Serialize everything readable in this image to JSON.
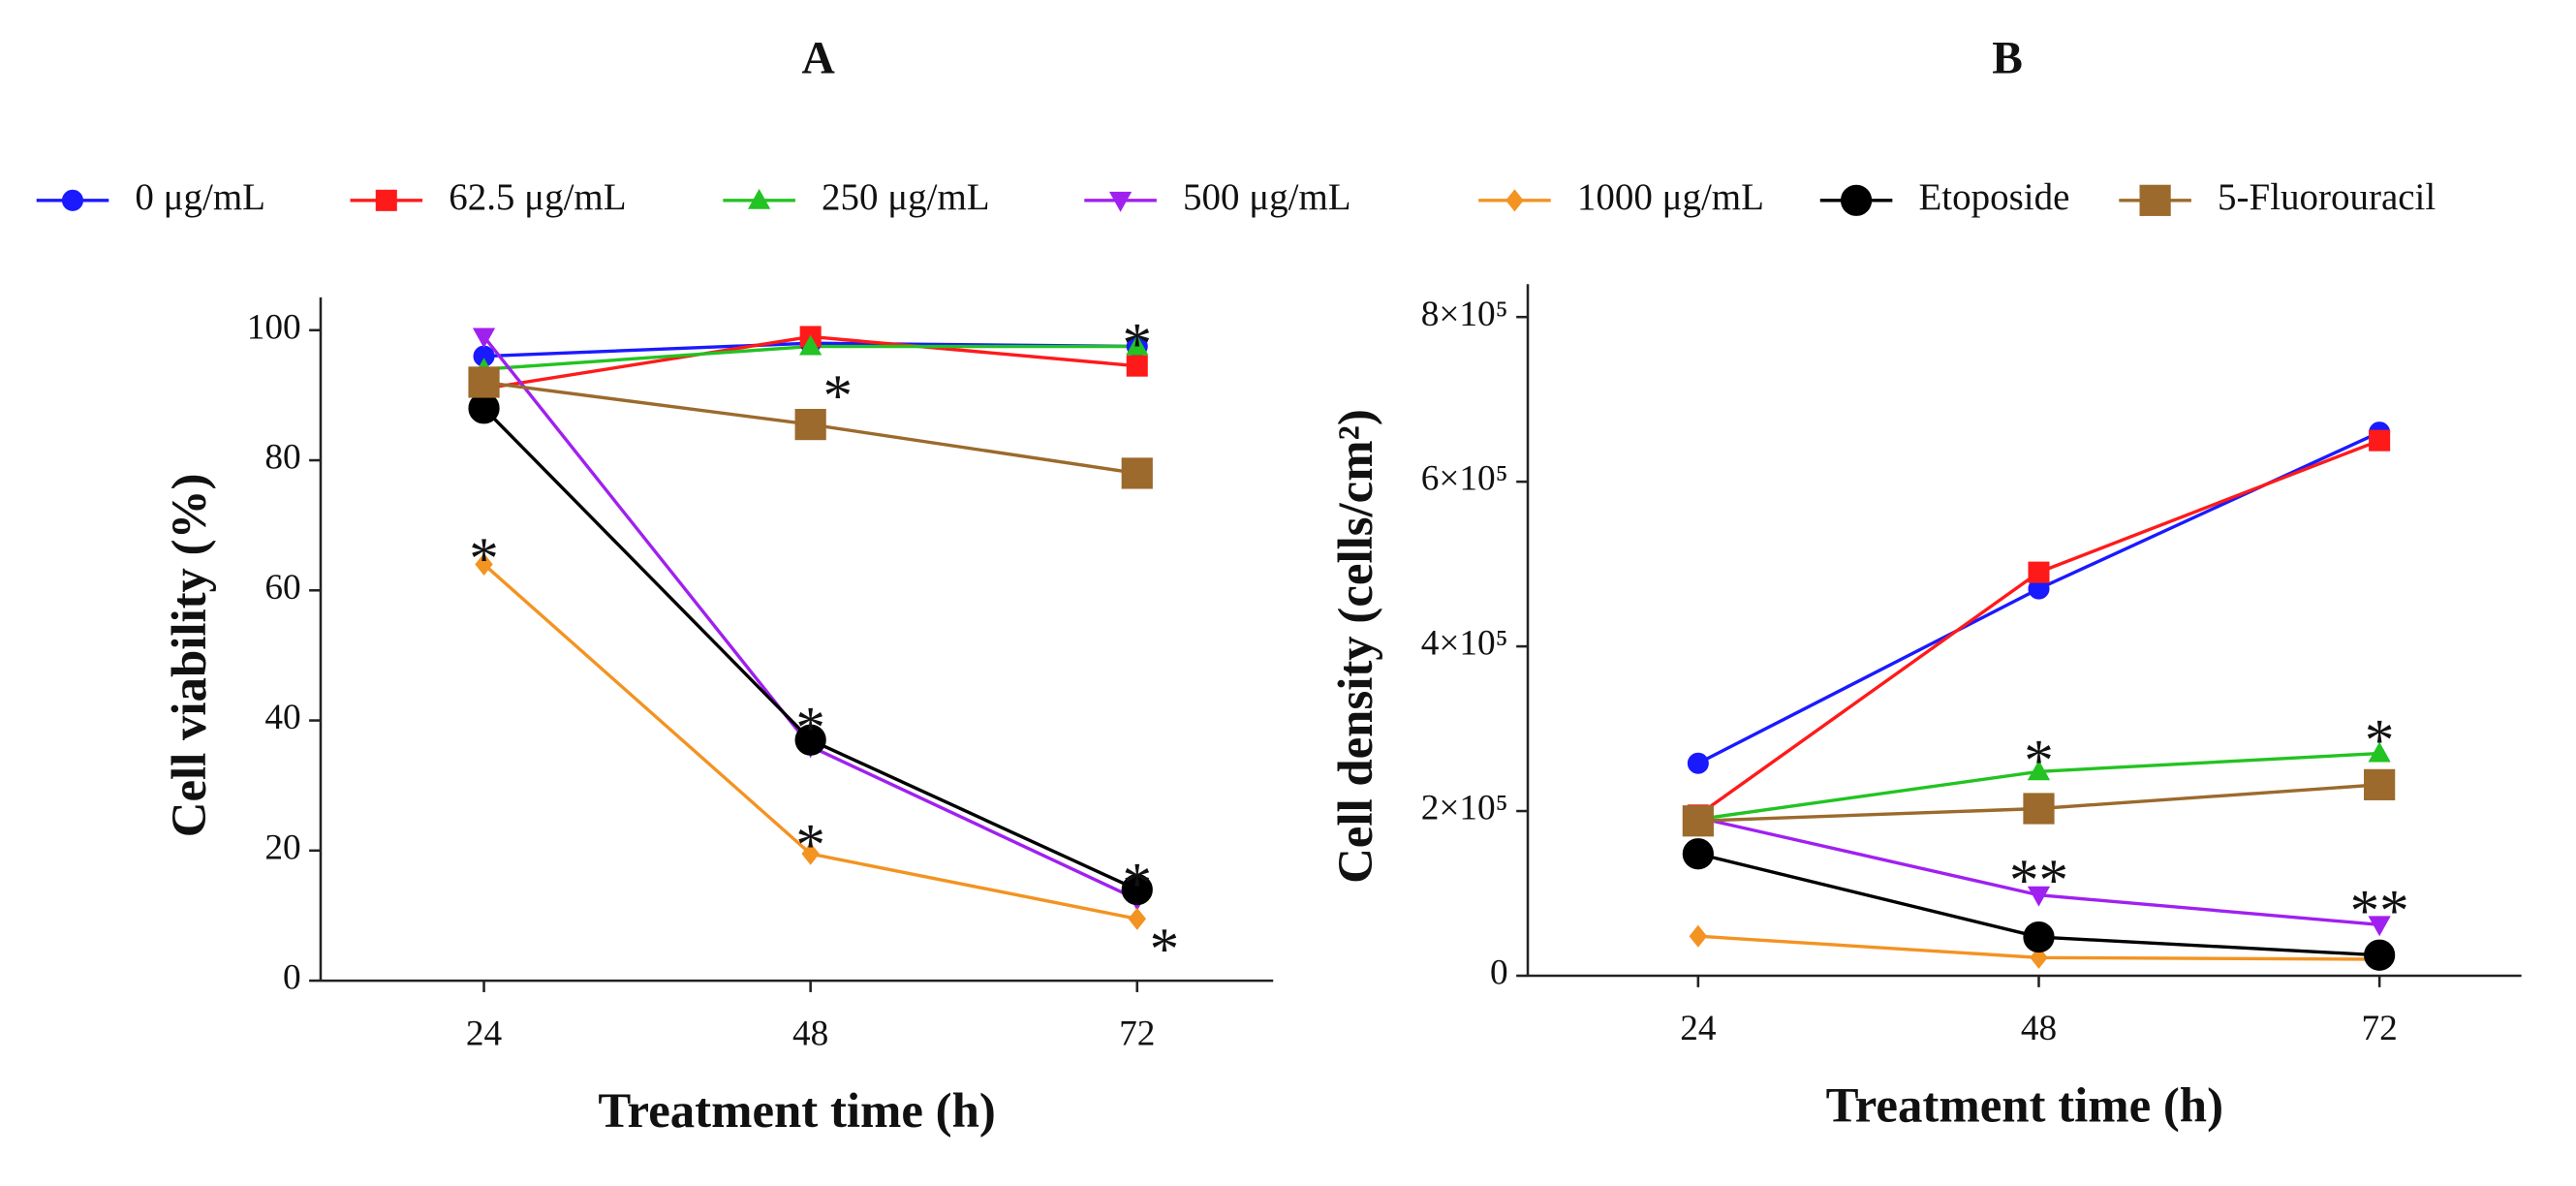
{
  "chart_data": [
    {
      "type": "line",
      "title": "A",
      "xlabel": "Treatment time (h)",
      "ylabel": "Cell viability (%)",
      "x": [
        24,
        48,
        72
      ],
      "xlim": [
        12,
        82
      ],
      "xticks": [
        24,
        48,
        72
      ],
      "ylim": [
        0,
        100
      ],
      "yticks": [
        0,
        20,
        40,
        60,
        80,
        100
      ],
      "series": [
        {
          "name": "0 μg/mL",
          "color": "#1a1aff",
          "marker": "circle",
          "values": [
            96,
            98,
            97.5
          ]
        },
        {
          "name": "62.5 μg/mL",
          "color": "#ff1a1a",
          "marker": "square",
          "values": [
            91,
            99,
            94.5
          ]
        },
        {
          "name": "250 μg/mL",
          "color": "#22c322",
          "marker": "triangle",
          "values": [
            94,
            97.5,
            97.5
          ]
        },
        {
          "name": "500 μg/mL",
          "color": "#a020f0",
          "marker": "triangle-down",
          "values": [
            99,
            36,
            12.5
          ]
        },
        {
          "name": "1000 μg/mL",
          "color": "#f39321",
          "marker": "diamond",
          "values": [
            64,
            19.5,
            9.5
          ]
        },
        {
          "name": "Etoposide",
          "color": "#000000",
          "marker": "circle-large",
          "values": [
            88,
            37,
            14
          ]
        },
        {
          "name": "5-Fluorouracil",
          "color": "#9b6a2c",
          "marker": "square-large",
          "values": [
            92,
            85.5,
            78
          ]
        }
      ],
      "annotations": [
        {
          "text": "*",
          "x": 72,
          "y": 99
        },
        {
          "text": "*",
          "x": 50,
          "y": 91
        },
        {
          "text": "*",
          "x": 24,
          "y": 66
        },
        {
          "text": "*",
          "x": 48,
          "y": 40
        },
        {
          "text": "*",
          "x": 48,
          "y": 22
        },
        {
          "text": "*",
          "x": 72,
          "y": 16
        },
        {
          "text": "*",
          "x": 74,
          "y": 6
        }
      ]
    },
    {
      "type": "line",
      "title": "B",
      "xlabel": "Treatment time (h)",
      "ylabel": "Cell density (cells/cm²)",
      "x": [
        24,
        48,
        72
      ],
      "xlim": [
        12,
        82
      ],
      "xticks": [
        24,
        48,
        72
      ],
      "ylim": [
        0,
        800000
      ],
      "yticks": [
        0,
        {
          "value": 200000,
          "label": "2×10⁵"
        },
        {
          "value": 400000,
          "label": "4×10⁵"
        },
        {
          "value": 600000,
          "label": "6×10⁵"
        },
        {
          "value": 800000,
          "label": "8×10⁵"
        }
      ],
      "series": [
        {
          "color": "#1a1aff",
          "marker": "circle",
          "values": [
            258000,
            470000,
            660000
          ]
        },
        {
          "color": "#ff1a1a",
          "marker": "square",
          "values": [
            195000,
            490000,
            650000
          ]
        },
        {
          "color": "#22c322",
          "marker": "triangle",
          "values": [
            190000,
            248000,
            270000
          ]
        },
        {
          "color": "#a020f0",
          "marker": "triangle-down",
          "values": [
            192000,
            98000,
            62000
          ]
        },
        {
          "color": "#f39321",
          "marker": "diamond",
          "values": [
            48000,
            22000,
            20000
          ]
        },
        {
          "color": "#000000",
          "marker": "circle-large",
          "values": [
            148000,
            47000,
            25000
          ]
        },
        {
          "color": "#9b6a2c",
          "marker": "square-large",
          "values": [
            188000,
            203000,
            232000
          ]
        }
      ],
      "annotations": [
        {
          "text": "*",
          "x": 48,
          "y": 270000
        },
        {
          "text": "*",
          "x": 72,
          "y": 295000
        },
        {
          "text": "**",
          "x": 48,
          "y": 125000
        },
        {
          "text": "**",
          "x": 72,
          "y": 88000
        }
      ]
    }
  ]
}
